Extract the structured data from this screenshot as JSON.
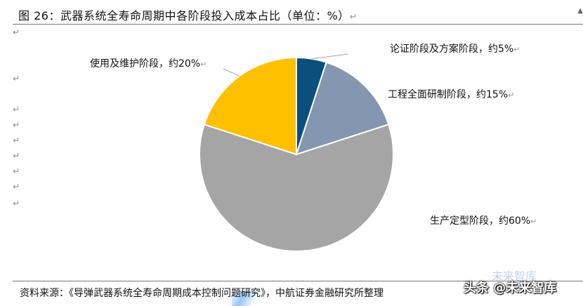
{
  "header": {
    "title": "图 26：武器系统全寿命周期中各阶段投入成本占比（单位：%）",
    "return_mark": "↵"
  },
  "chart_data": {
    "type": "pie",
    "title": "图 26：武器系统全寿命周期中各阶段投入成本占比（单位：%）",
    "slices": [
      {
        "label": "论证阶段及方案阶段，约5%",
        "value": 5,
        "color": "#0b4f7c"
      },
      {
        "label": "工程全面研制阶段，约15%",
        "value": 15,
        "color": "#8496b0"
      },
      {
        "label": "生产定型阶段，约60%",
        "value": 60,
        "color": "#a5a5a5"
      },
      {
        "label": "使用及维护阶段，约20%",
        "value": 20,
        "color": "#ffc000"
      }
    ],
    "start_angle_deg": 0,
    "direction": "clockwise"
  },
  "source": {
    "text": "资料来源：《导弹武器系统全寿命周期成本控制问题研究》，中航证券金融研究所整理"
  },
  "watermark": {
    "text": "头条 @未来智库",
    "faint": "未来智库"
  }
}
